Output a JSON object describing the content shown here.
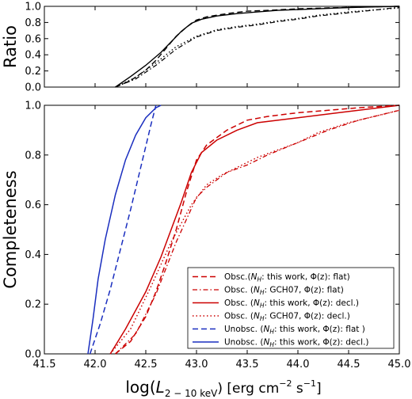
{
  "chart_data": [
    {
      "type": "line",
      "ylabel": "Ratio",
      "xlim": [
        41.5,
        45.0
      ],
      "ylim": [
        0.0,
        1.0
      ],
      "yticks": [
        "0.0",
        "0.2",
        "0.4",
        "0.6",
        "0.8",
        "1.0"
      ],
      "grid": false,
      "series": [
        {
          "color": "#000000",
          "dash": "solid",
          "width": 1.4,
          "x": [
            42.2,
            42.35,
            42.5,
            42.65,
            42.75,
            42.85,
            42.95,
            43.05,
            43.2,
            43.4,
            43.6,
            43.8,
            44.0,
            44.2,
            44.5,
            44.8,
            45.0
          ],
          "y": [
            0.0,
            0.13,
            0.27,
            0.43,
            0.56,
            0.69,
            0.79,
            0.84,
            0.88,
            0.91,
            0.93,
            0.95,
            0.96,
            0.97,
            0.985,
            0.995,
            1.0
          ]
        },
        {
          "color": "#000000",
          "dash": "dashed",
          "width": 1.4,
          "x": [
            42.2,
            42.35,
            42.5,
            42.6,
            42.7,
            42.8,
            42.9,
            43.0,
            43.1,
            43.3,
            43.5,
            43.7,
            44.0,
            44.3,
            44.6,
            45.0
          ],
          "y": [
            0.0,
            0.08,
            0.21,
            0.33,
            0.48,
            0.63,
            0.74,
            0.83,
            0.87,
            0.91,
            0.94,
            0.95,
            0.97,
            0.98,
            0.99,
            1.0
          ]
        },
        {
          "color": "#000000",
          "dash": "dashdot",
          "width": 1.2,
          "x": [
            42.2,
            42.4,
            42.6,
            42.8,
            43.0,
            43.2,
            43.4,
            43.6,
            43.8,
            44.0,
            44.2,
            44.5,
            44.8,
            45.0
          ],
          "y": [
            0.0,
            0.1,
            0.27,
            0.47,
            0.62,
            0.7,
            0.74,
            0.77,
            0.81,
            0.84,
            0.88,
            0.92,
            0.96,
            0.99
          ]
        },
        {
          "color": "#000000",
          "dash": "dotted",
          "width": 1.4,
          "x": [
            42.2,
            42.4,
            42.6,
            42.8,
            43.0,
            43.2,
            43.4,
            43.6,
            43.8,
            44.0,
            44.2,
            44.5,
            44.8,
            45.0
          ],
          "y": [
            0.0,
            0.12,
            0.3,
            0.5,
            0.63,
            0.71,
            0.75,
            0.78,
            0.82,
            0.85,
            0.89,
            0.93,
            0.96,
            0.98
          ]
        }
      ]
    },
    {
      "type": "line",
      "xlabel_main": "log(",
      "xlabel_sub": "2 − 10 keV",
      "xlabel_units": ") [erg cm",
      "xlabel_exp1": "−2",
      "xlabel_s": " s",
      "xlabel_exp2": "−1",
      "xlabel_close": "]",
      "ylabel": "Completeness",
      "xlim": [
        41.5,
        45.0
      ],
      "ylim": [
        0.0,
        1.0
      ],
      "xticks": [
        "41.5",
        "42.0",
        "42.5",
        "43.0",
        "43.5",
        "44.0",
        "44.5",
        "45.0"
      ],
      "yticks": [
        "0.0",
        "0.2",
        "0.4",
        "0.6",
        "0.8",
        "1.0"
      ],
      "grid": false,
      "legend_position": "lower right",
      "legend": [
        {
          "pre": "Obsc.(",
          "sym": "N",
          "sub": "H",
          "post": ": this work, Φ(z): flat)"
        },
        {
          "pre": "Obsc. (",
          "sym": "N",
          "sub": "H",
          "post": ": GCH07, Φ(z): flat)"
        },
        {
          "pre": "Obsc. (",
          "sym": "N",
          "sub": "H",
          "post": ": this work, Φ(z): decl.)"
        },
        {
          "pre": "Obsc. (",
          "sym": "N",
          "sub": "H",
          "post": ": GCH07, Φ(z): decl.)"
        },
        {
          "pre": "Unobsc. (",
          "sym": "N",
          "sub": "H",
          "post": ": this work, Φ(z): flat )"
        },
        {
          "pre": "Unobsc. (",
          "sym": "N",
          "sub": "H",
          "post": ": this work, Φ(z): decl.)"
        }
      ],
      "series": [
        {
          "color": "#cc0000",
          "dash": "dashed",
          "width": 1.5,
          "x": [
            42.2,
            42.35,
            42.5,
            42.6,
            42.7,
            42.8,
            42.9,
            43.0,
            43.1,
            43.3,
            43.5,
            43.7,
            44.0,
            44.3,
            44.6,
            45.0
          ],
          "y": [
            0.0,
            0.05,
            0.15,
            0.25,
            0.37,
            0.5,
            0.65,
            0.78,
            0.84,
            0.9,
            0.94,
            0.955,
            0.97,
            0.98,
            0.99,
            1.0
          ]
        },
        {
          "color": "#cc0000",
          "dash": "dashdot",
          "width": 1.3,
          "x": [
            42.2,
            42.4,
            42.6,
            42.8,
            43.0,
            43.1,
            43.2,
            43.3,
            43.5,
            43.7,
            44.0,
            44.3,
            44.6,
            45.0
          ],
          "y": [
            0.0,
            0.08,
            0.24,
            0.45,
            0.63,
            0.67,
            0.7,
            0.73,
            0.76,
            0.8,
            0.85,
            0.9,
            0.94,
            0.98
          ]
        },
        {
          "color": "#cc0000",
          "dash": "solid",
          "width": 1.5,
          "x": [
            42.15,
            42.3,
            42.5,
            42.65,
            42.75,
            42.85,
            42.95,
            43.05,
            43.2,
            43.4,
            43.6,
            44.0,
            44.4,
            44.8,
            45.0
          ],
          "y": [
            0.0,
            0.1,
            0.25,
            0.39,
            0.5,
            0.61,
            0.73,
            0.81,
            0.86,
            0.9,
            0.93,
            0.95,
            0.97,
            0.99,
            1.0
          ]
        },
        {
          "color": "#cc0000",
          "dash": "dotted",
          "width": 1.5,
          "x": [
            42.15,
            42.35,
            42.55,
            42.75,
            42.95,
            43.1,
            43.25,
            43.4,
            43.6,
            43.8,
            44.0,
            44.2,
            44.5,
            44.8,
            45.0
          ],
          "y": [
            0.0,
            0.1,
            0.27,
            0.45,
            0.6,
            0.68,
            0.72,
            0.75,
            0.79,
            0.82,
            0.85,
            0.89,
            0.93,
            0.96,
            0.98
          ]
        },
        {
          "color": "#1a2ebf",
          "dash": "dashed",
          "width": 1.5,
          "x": [
            41.95,
            42.05,
            42.15,
            42.25,
            42.35,
            42.45,
            42.55,
            42.6
          ],
          "y": [
            0.0,
            0.12,
            0.26,
            0.42,
            0.58,
            0.75,
            0.92,
            1.0
          ]
        },
        {
          "color": "#1a2ebf",
          "dash": "solid",
          "width": 1.5,
          "x": [
            41.93,
            41.98,
            42.03,
            42.1,
            42.2,
            42.3,
            42.4,
            42.5,
            42.6,
            42.65
          ],
          "y": [
            0.0,
            0.14,
            0.3,
            0.46,
            0.64,
            0.78,
            0.88,
            0.95,
            0.99,
            1.0
          ]
        }
      ]
    }
  ]
}
